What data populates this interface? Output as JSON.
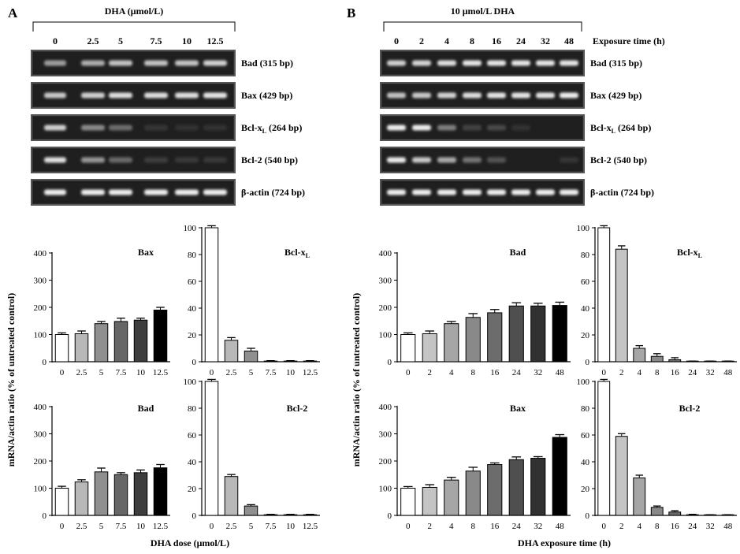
{
  "panels": {
    "A": {
      "letter": "A",
      "header_title": "DHA (μmol/L)",
      "lanes": [
        "0",
        "2.5",
        "5",
        "7.5",
        "10",
        "12.5"
      ],
      "exposure_label": "",
      "gels": [
        {
          "label": "Bad (315 bp)",
          "intensity": [
            0.55,
            0.62,
            0.72,
            0.72,
            0.72,
            0.78
          ]
        },
        {
          "label": "Bax (429 bp)",
          "intensity": [
            0.75,
            0.78,
            0.85,
            0.85,
            0.85,
            0.88
          ]
        },
        {
          "label": "Bcl-x",
          "sub": "L",
          "label_after": " (264 bp)",
          "intensity": [
            0.78,
            0.45,
            0.32,
            0.06,
            0.05,
            0.05
          ]
        },
        {
          "label": "Bcl-2 (540 bp)",
          "intensity": [
            0.85,
            0.5,
            0.3,
            0.1,
            0.07,
            0.07
          ]
        },
        {
          "label": "β-actin (724 bp)",
          "intensity": [
            0.92,
            0.92,
            0.92,
            0.92,
            0.92,
            0.92
          ]
        }
      ],
      "ylabel": "mRNA/actin ratio (% of untreated control)",
      "xlabel": "DHA dose (μmol/L)"
    },
    "B": {
      "letter": "B",
      "header_title": "10 μmol/L DHA",
      "lanes": [
        "0",
        "2",
        "4",
        "8",
        "16",
        "24",
        "32",
        "48"
      ],
      "exposure_label": "Exposure time (h)",
      "gels": [
        {
          "label": "Bad (315 bp)",
          "intensity": [
            0.78,
            0.8,
            0.85,
            0.88,
            0.88,
            0.88,
            0.88,
            0.88
          ]
        },
        {
          "label": "Bax (429 bp)",
          "intensity": [
            0.72,
            0.75,
            0.8,
            0.85,
            0.88,
            0.88,
            0.88,
            0.92
          ]
        },
        {
          "label": "Bcl-x",
          "sub": "L",
          "label_after": " (264 bp)",
          "intensity": [
            0.92,
            0.92,
            0.4,
            0.12,
            0.16,
            0.05,
            0.03,
            0.03
          ]
        },
        {
          "label": "Bcl-2 (540 bp)",
          "intensity": [
            0.9,
            0.75,
            0.6,
            0.35,
            0.2,
            0.03,
            0.03,
            0.06
          ]
        },
        {
          "label": "β-actin (724 bp)",
          "intensity": [
            0.92,
            0.92,
            0.92,
            0.92,
            0.92,
            0.92,
            0.92,
            0.92
          ]
        }
      ],
      "ylabel": "mRNA/actin ratio (% of untreated control)",
      "xlabel": "DHA exposure time (h)"
    }
  },
  "chart_data": [
    {
      "id": "A-Bax",
      "type": "bar",
      "title": "Bax",
      "categories": [
        "0",
        "2.5",
        "5",
        "7.5",
        "10",
        "12.5"
      ],
      "values": [
        100,
        103,
        140,
        148,
        153,
        190
      ],
      "errors": [
        6,
        10,
        8,
        12,
        7,
        10
      ],
      "ylim": [
        0,
        400
      ],
      "yticks": [
        0,
        100,
        200,
        300,
        400
      ]
    },
    {
      "id": "A-Bclxl",
      "type": "bar",
      "title": "Bcl-x",
      "title_sub": "L",
      "categories": [
        "0",
        "2.5",
        "5",
        "7.5",
        "10",
        "12.5"
      ],
      "values": [
        100,
        16,
        8,
        0.5,
        0.5,
        0.5
      ],
      "errors": [
        1.5,
        2,
        2,
        0.3,
        0.3,
        0.3
      ],
      "ylim": [
        0,
        100
      ],
      "yticks": [
        0,
        20,
        40,
        60,
        80,
        100
      ]
    },
    {
      "id": "A-Bad",
      "type": "bar",
      "title": "Bad",
      "categories": [
        "0",
        "2.5",
        "5",
        "7.5",
        "10",
        "12.5"
      ],
      "values": [
        100,
        123,
        160,
        150,
        157,
        175
      ],
      "errors": [
        7,
        8,
        14,
        7,
        10,
        12
      ],
      "ylim": [
        0,
        400
      ],
      "yticks": [
        0,
        100,
        200,
        300,
        400
      ]
    },
    {
      "id": "A-Bcl2",
      "type": "bar",
      "title": "Bcl-2",
      "categories": [
        "0",
        "2.5",
        "5",
        "7.5",
        "10",
        "12.5"
      ],
      "values": [
        100,
        29,
        7,
        0.5,
        0.5,
        0.5
      ],
      "errors": [
        1.5,
        1.5,
        1,
        0.3,
        0.3,
        0.3
      ],
      "ylim": [
        0,
        100
      ],
      "yticks": [
        0,
        20,
        40,
        60,
        80,
        100
      ]
    },
    {
      "id": "B-Bad",
      "type": "bar",
      "title": "Bad",
      "categories": [
        "0",
        "2",
        "4",
        "8",
        "16",
        "24",
        "32",
        "48"
      ],
      "values": [
        100,
        103,
        140,
        163,
        180,
        205,
        205,
        207
      ],
      "errors": [
        6,
        10,
        8,
        14,
        12,
        12,
        10,
        12
      ],
      "ylim": [
        0,
        400
      ],
      "yticks": [
        0,
        100,
        200,
        300,
        400
      ]
    },
    {
      "id": "B-Bclxl",
      "type": "bar",
      "title": "Bcl-x",
      "title_sub": "L",
      "categories": [
        "0",
        "2",
        "4",
        "8",
        "16",
        "24",
        "32",
        "48"
      ],
      "values": [
        100,
        84,
        10,
        4,
        1.5,
        0.3,
        0.3,
        0.3
      ],
      "errors": [
        1.5,
        2.5,
        2,
        2,
        1.5,
        0.2,
        0.2,
        0.2
      ],
      "ylim": [
        0,
        100
      ],
      "yticks": [
        0,
        20,
        40,
        60,
        80,
        100
      ]
    },
    {
      "id": "B-Bax",
      "type": "bar",
      "title": "Bax",
      "categories": [
        "0",
        "2",
        "4",
        "8",
        "16",
        "24",
        "32",
        "48"
      ],
      "values": [
        100,
        103,
        130,
        163,
        187,
        205,
        210,
        287
      ],
      "errors": [
        6,
        10,
        10,
        14,
        6,
        10,
        6,
        10
      ],
      "ylim": [
        0,
        400
      ],
      "yticks": [
        0,
        100,
        200,
        300,
        400
      ]
    },
    {
      "id": "B-Bcl2",
      "type": "bar",
      "title": "Bcl-2",
      "categories": [
        "0",
        "2",
        "4",
        "8",
        "16",
        "24",
        "32",
        "48"
      ],
      "values": [
        100,
        59,
        28,
        6,
        2.5,
        0.5,
        0.3,
        0.3
      ],
      "errors": [
        1.5,
        2,
        2,
        1,
        1,
        0.3,
        0.2,
        0.2
      ],
      "ylim": [
        0,
        100
      ],
      "yticks": [
        0,
        20,
        40,
        60,
        80,
        100
      ]
    }
  ]
}
